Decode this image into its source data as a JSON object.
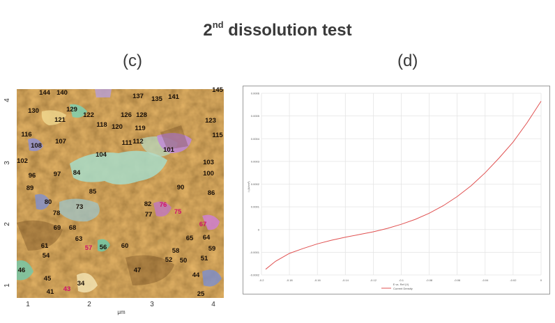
{
  "header": {
    "title_main": "2",
    "title_sup": "nd",
    "title_rest": " dissolution test",
    "label_c": "(c)",
    "label_d": "(d)"
  },
  "afm_map": {
    "x_ticks": [
      "1",
      "2",
      "3",
      "4"
    ],
    "y_ticks": [
      "1",
      "2",
      "3",
      "4"
    ],
    "x_unit": "μm",
    "particle_labels": [
      "144",
      "140",
      "145",
      "137",
      "135",
      "141",
      "130",
      "129",
      "126",
      "128",
      "122",
      "121",
      "123",
      "118",
      "120",
      "119",
      "116",
      "115",
      "107",
      "111",
      "112",
      "108",
      "104",
      "101",
      "102",
      "103",
      "97",
      "96",
      "84",
      "100",
      "89",
      "85",
      "90",
      "86",
      "80",
      "82",
      "76",
      "73",
      "78",
      "77",
      "75",
      "69",
      "68",
      "67",
      "63",
      "65",
      "64",
      "61",
      "57",
      "56",
      "60",
      "58",
      "59",
      "54",
      "52",
      "50",
      "51",
      "46",
      "47",
      "45",
      "44",
      "34",
      "43",
      "41",
      "25"
    ],
    "colors": {
      "base": "#a36a2a",
      "light": "#d9a860",
      "dark": "#5b3410",
      "cyan": "#9ad8c8",
      "purple": "#b98ad8",
      "blue": "#7a8fd0"
    }
  },
  "chart_data": {
    "type": "line",
    "title": "",
    "xlabel": "E vs. Ref (V)",
    "ylabel": "i (A/cm²)",
    "x_ticks": [
      "-0.2",
      "-0.18",
      "-0.16",
      "-0.14",
      "-0.12",
      "-0.1",
      "-0.08",
      "-0.06",
      "-0.04",
      "-0.02",
      "0"
    ],
    "y_ticks": [
      "0.0006",
      "0.0005",
      "0.0004",
      "0.0003",
      "0.0002",
      "0.0001",
      "0",
      "-0.0001",
      "-0.0002"
    ],
    "xlim": [
      -0.2,
      0
    ],
    "ylim": [
      -0.0002,
      0.0006
    ],
    "grid": true,
    "legend_position": "bottom",
    "series": [
      {
        "name": "Current Density",
        "color": "#e05050",
        "x": [
          -0.197,
          -0.19,
          -0.18,
          -0.17,
          -0.16,
          -0.15,
          -0.14,
          -0.13,
          -0.12,
          -0.11,
          -0.1,
          -0.09,
          -0.08,
          -0.07,
          -0.06,
          -0.05,
          -0.04,
          -0.03,
          -0.02,
          -0.01,
          0
        ],
        "y": [
          -0.000175,
          -0.00014,
          -0.000105,
          -8.3e-05,
          -6.3e-05,
          -4.7e-05,
          -3.4e-05,
          -2.2e-05,
          -1e-05,
          5e-06,
          2.3e-05,
          4.5e-05,
          7.2e-05,
          0.000105,
          0.000145,
          0.000193,
          0.00025,
          0.000315,
          0.000385,
          0.00047,
          0.000565
        ]
      }
    ]
  }
}
